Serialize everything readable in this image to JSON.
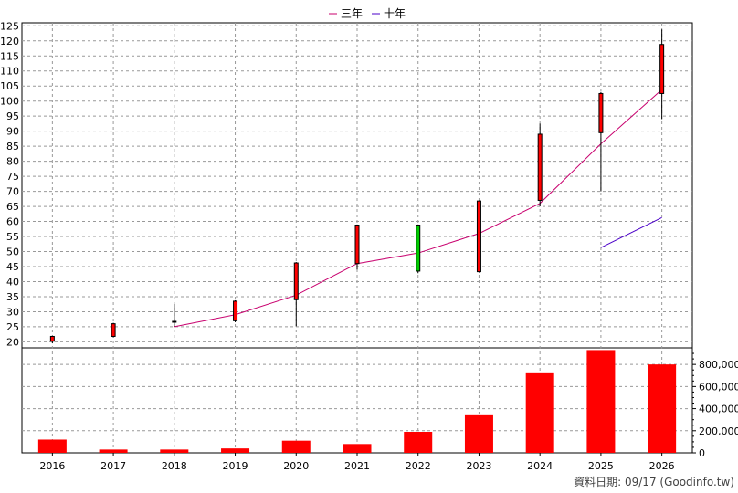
{
  "chart_data": {
    "type": "candlestick",
    "legend": [
      {
        "name": "三年",
        "color": "#c8006e"
      },
      {
        "name": "十年",
        "color": "#4b00c8"
      }
    ],
    "categories": [
      "2016",
      "2017",
      "2018",
      "2019",
      "2020",
      "2021",
      "2022",
      "2023",
      "2024",
      "2025",
      "2026"
    ],
    "price_axis": {
      "ticks": [
        20,
        25,
        30,
        35,
        40,
        45,
        50,
        55,
        60,
        65,
        70,
        75,
        80,
        85,
        90,
        95,
        100,
        105,
        110,
        115,
        120,
        125
      ],
      "ylim": [
        18,
        126
      ]
    },
    "candles": [
      {
        "open": 20.2,
        "close": 21.8,
        "high": 22.0,
        "low": 19.5
      },
      {
        "open": 21.8,
        "close": 26.0,
        "high": 26.3,
        "low": 21.5
      },
      {
        "open": 26.5,
        "close": 26.8,
        "high": 32.5,
        "low": 25.0
      },
      {
        "open": 27.0,
        "close": 33.5,
        "high": 33.8,
        "low": 26.5
      },
      {
        "open": 34.0,
        "close": 46.2,
        "high": 46.5,
        "low": 25.2
      },
      {
        "open": 46.0,
        "close": 58.8,
        "high": 59.0,
        "low": 44.0
      },
      {
        "open": 58.8,
        "close": 43.5,
        "high": 59.0,
        "low": 42.8
      },
      {
        "open": 43.3,
        "close": 66.8,
        "high": 67.0,
        "low": 43.0
      },
      {
        "open": 67.0,
        "close": 89.0,
        "high": 92.5,
        "low": 65.0
      },
      {
        "open": 89.5,
        "close": 102.5,
        "high": 103.0,
        "low": 70.0
      },
      {
        "open": 102.5,
        "close": 118.8,
        "high": 123.8,
        "low": 94.0
      }
    ],
    "series": [
      {
        "name": "三年",
        "values": [
          null,
          null,
          25.0,
          29.0,
          35.5,
          46.0,
          49.5,
          56.0,
          66.0,
          85.8,
          103.8
        ]
      },
      {
        "name": "十年",
        "values": [
          null,
          null,
          null,
          null,
          null,
          null,
          null,
          null,
          null,
          51.3,
          61.3
        ]
      }
    ],
    "volume_axis": {
      "ticks": [
        0,
        200000,
        400000,
        600000,
        800000
      ],
      "tick_labels": [
        "0",
        "200,000",
        "400,000",
        "600,000",
        "800,000"
      ],
      "ylim": [
        0,
        950000
      ]
    },
    "volume": [
      120000,
      30000,
      30000,
      40000,
      110000,
      80000,
      190000,
      340000,
      720000,
      930000,
      800000
    ],
    "colors": {
      "up": "#ff0000",
      "down": "#00cc00",
      "volume": "#ff0000",
      "grid": "#999999"
    }
  },
  "footer": {
    "source": "資料日期: 09/17  (Goodinfo.tw)"
  }
}
